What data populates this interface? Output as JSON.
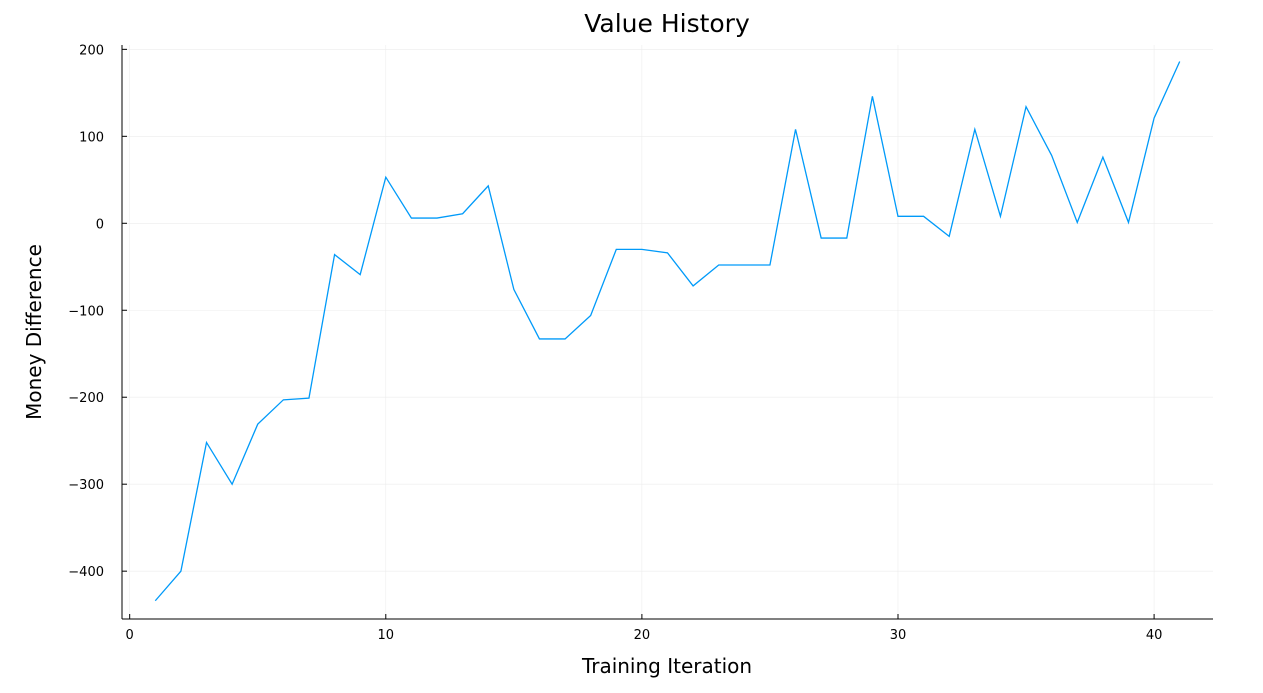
{
  "chart_data": {
    "type": "line",
    "title": "Value History",
    "xlabel": "Training Iteration",
    "ylabel": "Money Difference",
    "xlim": [
      -0.3,
      42.3
    ],
    "ylim": [
      -455,
      205
    ],
    "xticks": [
      0,
      10,
      20,
      30,
      40
    ],
    "yticks": [
      -400,
      -300,
      -200,
      -100,
      0,
      100,
      200
    ],
    "ytick_labels": [
      "−400",
      "−300",
      "−200",
      "−100",
      "0",
      "100",
      "200"
    ],
    "grid": true,
    "legend": "none",
    "colors": {
      "series": "#009af9",
      "grid": "#ececec",
      "axis": "#000000"
    },
    "series": [
      {
        "x": [
          1,
          2,
          3,
          4,
          5,
          6,
          7,
          8,
          9,
          10,
          11,
          12,
          13,
          14,
          15,
          16,
          17,
          18,
          19,
          20,
          21,
          22,
          23,
          24,
          25,
          26,
          27,
          28,
          29,
          30,
          31,
          32,
          33,
          34,
          35,
          36,
          37,
          38,
          39,
          40,
          41
        ],
        "values": [
          -434,
          -400,
          -252,
          -300,
          -231,
          -203,
          -201,
          -36,
          -59,
          53,
          6,
          6,
          11,
          43,
          -76,
          -133,
          -133,
          -106,
          -30,
          -30,
          -34,
          -72,
          -48,
          -48,
          -48,
          108,
          -17,
          -17,
          146,
          8,
          8,
          -15,
          108,
          8,
          134,
          78,
          1,
          76,
          1,
          121,
          186
        ]
      }
    ]
  }
}
